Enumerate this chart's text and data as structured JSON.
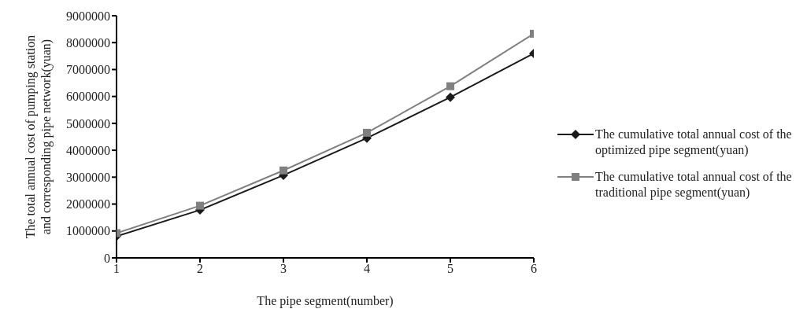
{
  "chart_data": {
    "type": "line",
    "xlabel": "The pipe segment(number)",
    "ylabel": "The total annual cost of pumping station and corresponding pipe network(yuan)",
    "x": [
      1,
      2,
      3,
      4,
      5,
      6
    ],
    "xlim": [
      1,
      6
    ],
    "xticks": [
      1,
      2,
      3,
      4,
      5,
      6
    ],
    "ylim": [
      0,
      9000000
    ],
    "yticks": [
      0,
      1000000,
      2000000,
      3000000,
      4000000,
      5000000,
      6000000,
      7000000,
      8000000,
      9000000
    ],
    "series": [
      {
        "name": "The cumulative total annual cost of the optimized pipe segment(yuan)",
        "color": "#1a1a1a",
        "marker": "diamond",
        "values": [
          800000,
          1780000,
          3070000,
          4450000,
          5970000,
          7600000
        ]
      },
      {
        "name": "The cumulative total annual cost of the traditional pipe segment(yuan)",
        "color": "#808080",
        "marker": "square",
        "values": [
          920000,
          1940000,
          3250000,
          4650000,
          6380000,
          8330000
        ]
      }
    ],
    "legend": "right",
    "grid": false
  }
}
